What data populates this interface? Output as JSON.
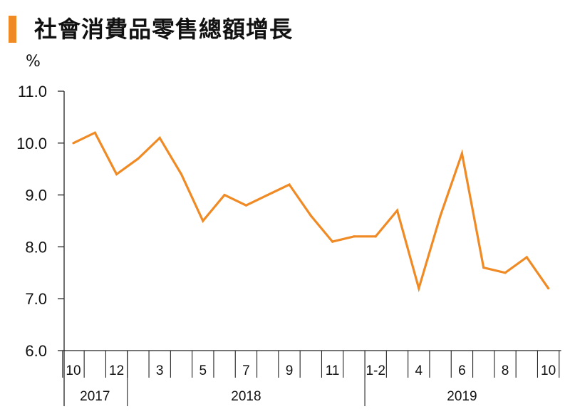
{
  "title": "社會消費品零售總額增長",
  "colors": {
    "accent": "#F08A24",
    "line": "#F08A24",
    "axis": "#222222"
  },
  "chart_data": {
    "type": "line",
    "title": "社會消費品零售總額增長",
    "ylabel": "%",
    "xlabel": "",
    "ylim": [
      6.0,
      11.0
    ],
    "yticks": [
      "6.0",
      "7.0",
      "8.0",
      "9.0",
      "10.0",
      "11.0"
    ],
    "x": [
      "10",
      "11",
      "12",
      "1-2(2018)",
      "3",
      "4",
      "5",
      "6",
      "7",
      "8",
      "9",
      "10",
      "11",
      "12",
      "1-2",
      "3",
      "4",
      "5",
      "6",
      "7",
      "8",
      "9",
      "10"
    ],
    "values": [
      10.0,
      10.2,
      9.4,
      9.7,
      10.1,
      9.4,
      8.5,
      9.0,
      8.8,
      9.0,
      9.2,
      8.6,
      8.1,
      8.2,
      8.2,
      8.7,
      7.2,
      8.6,
      9.8,
      7.6,
      7.5,
      7.8,
      7.2
    ],
    "x_labels": [
      {
        "i": 0,
        "text": "10"
      },
      {
        "i": 2,
        "text": "12"
      },
      {
        "i": 4,
        "text": "3"
      },
      {
        "i": 6,
        "text": "5"
      },
      {
        "i": 8,
        "text": "7"
      },
      {
        "i": 10,
        "text": "9"
      },
      {
        "i": 12,
        "text": "11"
      },
      {
        "i": 14,
        "text": "1-2"
      },
      {
        "i": 16,
        "text": "4"
      },
      {
        "i": 18,
        "text": "6"
      },
      {
        "i": 20,
        "text": "8"
      },
      {
        "i": 22,
        "text": "10"
      }
    ],
    "years": [
      {
        "text": "2017",
        "from": 0,
        "to": 2
      },
      {
        "text": "2018",
        "from": 3,
        "to": 13
      },
      {
        "text": "2019",
        "from": 14,
        "to": 22
      }
    ],
    "grid": false,
    "legend": "none"
  }
}
